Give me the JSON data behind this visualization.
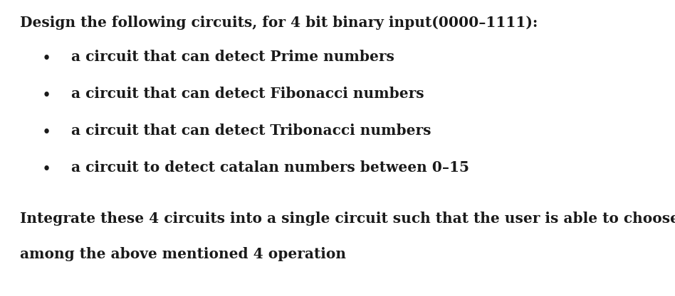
{
  "background_color": "#ffffff",
  "title_text": "Design the following circuits, for 4 bit binary input(0000–1111):",
  "title_fontsize": 14.5,
  "title_fontweight": "bold",
  "title_fontfamily": "serif",
  "bullet_items": [
    "a circuit that can detect Prime numbers",
    "a circuit that can detect Fibonacci numbers",
    "a circuit that can detect Tribonacci numbers",
    "a circuit to detect catalan numbers between 0–15"
  ],
  "bullet_fontsize": 14.5,
  "bullet_fontweight": "bold",
  "footer_line1": "Integrate these 4 circuits into a single circuit such that the user is able to choose",
  "footer_line2": "among the above mentioned 4 operation",
  "footer_fontsize": 14.5,
  "footer_fontweight": "bold",
  "text_color": "#1a1a1a"
}
